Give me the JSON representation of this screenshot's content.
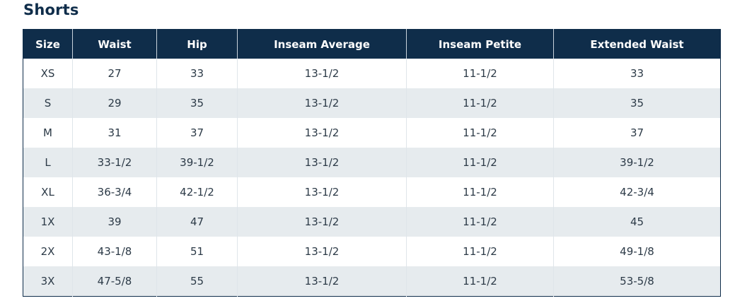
{
  "title": "Shorts",
  "table": {
    "headers": [
      "Size",
      "Waist",
      "Hip",
      "Inseam Average",
      "Inseam Petite",
      "Extended Waist"
    ],
    "rows": [
      [
        "XS",
        "27",
        "33",
        "13-1/2",
        "11-1/2",
        "33"
      ],
      [
        "S",
        "29",
        "35",
        "13-1/2",
        "11-1/2",
        "35"
      ],
      [
        "M",
        "31",
        "37",
        "13-1/2",
        "11-1/2",
        "37"
      ],
      [
        "L",
        "33-1/2",
        "39-1/2",
        "13-1/2",
        "11-1/2",
        "39-1/2"
      ],
      [
        "XL",
        "36-3/4",
        "42-1/2",
        "13-1/2",
        "11-1/2",
        "42-3/4"
      ],
      [
        "1X",
        "39",
        "47",
        "13-1/2",
        "11-1/2",
        "45"
      ],
      [
        "2X",
        "43-1/8",
        "51",
        "13-1/2",
        "11-1/2",
        "49-1/8"
      ],
      [
        "3X",
        "47-5/8",
        "55",
        "13-1/2",
        "11-1/2",
        "53-5/8"
      ]
    ]
  },
  "colors": {
    "header_bg": "#0f2d4a",
    "row_alt": "#e6ebee",
    "title": "#0f2d4a"
  }
}
